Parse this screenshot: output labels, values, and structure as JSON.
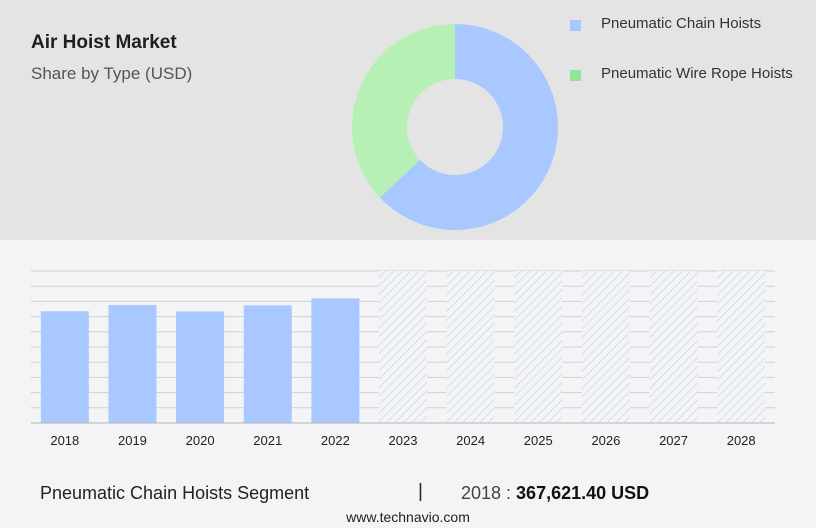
{
  "header": {
    "title": "Air Hoist Market",
    "subtitle": "Share by Type (USD)"
  },
  "colors": {
    "chain": "#a8c8ff",
    "wire_rope": "#b7f0b5",
    "wire_rope_legend": "#8fe696",
    "forecast_hatch": "#c2d5f5",
    "grid": "#d0d0d0"
  },
  "legend": [
    {
      "label": "Pneumatic Chain Hoists",
      "color": "#a8c8ff"
    },
    {
      "label": "Pneumatic Wire Rope Hoists",
      "color": "#8fe696"
    }
  ],
  "chart_data": [
    {
      "type": "pie",
      "style": "donut",
      "categories": [
        "Pneumatic Chain Hoists",
        "Pneumatic Wire Rope Hoists"
      ],
      "values": [
        63,
        37
      ]
    },
    {
      "type": "bar",
      "categories": [
        "2018",
        "2019",
        "2020",
        "2021",
        "2022",
        "2023",
        "2024",
        "2025",
        "2026",
        "2027",
        "2028"
      ],
      "series": [
        {
          "name": "Pneumatic Chain Hoists",
          "values": [
            367621.4,
            388000,
            367000,
            387000,
            410000,
            null,
            null,
            null,
            null,
            null,
            null
          ]
        }
      ],
      "forecast_categories": [
        "2023",
        "2024",
        "2025",
        "2026",
        "2027",
        "2028"
      ],
      "ylim": [
        0,
        500000
      ],
      "grid": true
    }
  ],
  "footer": {
    "segment_label": "Pneumatic Chain Hoists Segment",
    "separator": "|",
    "year_prefix": "2018 : ",
    "value": "367,621.40 USD",
    "website": "www.technavio.com"
  }
}
